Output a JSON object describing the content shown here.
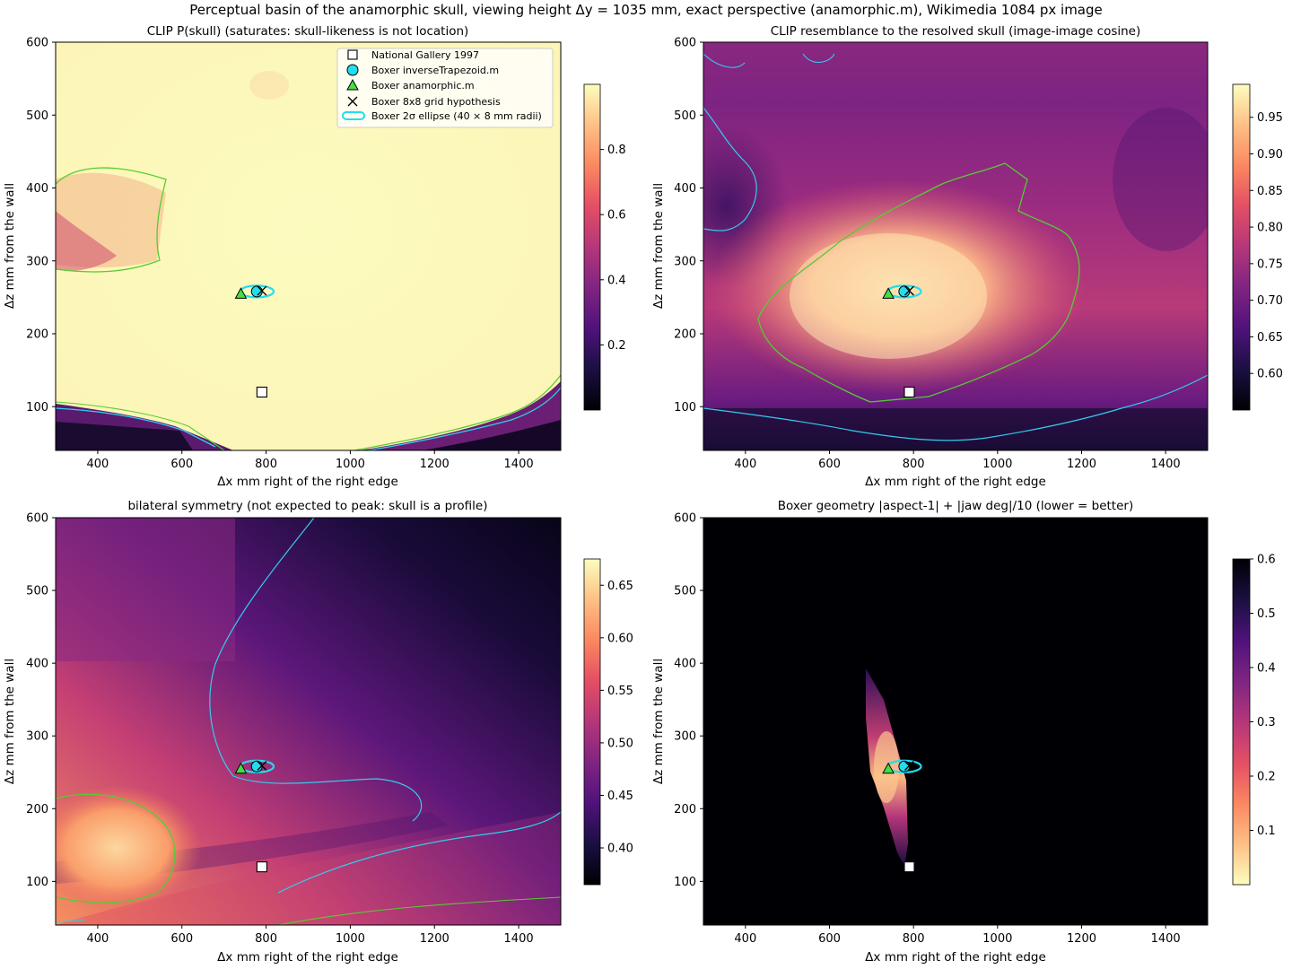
{
  "figure": {
    "suptitle": "Perceptual basin of the anamorphic skull, viewing height Δy = 1035 mm, exact perspective (anamorphic.m), Wikimedia 1084 px image"
  },
  "legend": {
    "national_gallery": "National Gallery 1997",
    "inverse_trapezoid": "Boxer inverseTrapezoid.m",
    "anamorphic": "Boxer anamorphic.m",
    "grid8x8": "Boxer 8x8 grid hypothesis",
    "ellipse": "Boxer 2σ ellipse (40 × 8 mm radii)"
  },
  "chart_data": [
    {
      "type": "heatmap",
      "title": "CLIP  P(skull)  (saturates: skull-likeness is not location)",
      "xlabel": "Δx  mm right of the right edge",
      "ylabel": "Δz  mm from the wall",
      "xlim": [
        300,
        1500
      ],
      "ylim": [
        40,
        600
      ],
      "xticks": [
        400,
        600,
        800,
        1000,
        1200,
        1400
      ],
      "yticks": [
        100,
        200,
        300,
        400,
        500,
        600
      ],
      "colormap": "magma",
      "colorbar": {
        "range": [
          0.0,
          1.0
        ],
        "ticks": [
          0.2,
          0.4,
          0.6,
          0.8
        ],
        "labels": [
          "0.2",
          "0.4",
          "0.6",
          "0.8"
        ]
      },
      "contours": [
        "#55cc33",
        "#33ccee"
      ],
      "markers": {
        "national_gallery": [
          790,
          120
        ],
        "inverse_trapezoid": [
          778,
          258
        ],
        "anamorphic": [
          740,
          255
        ],
        "grid8x8": [
          790,
          259
        ],
        "ellipse": {
          "center": [
            778,
            258
          ],
          "radii": [
            40,
            8
          ]
        }
      }
    },
    {
      "type": "heatmap",
      "title": "CLIP resemblance to the resolved skull (image-image cosine)",
      "xlabel": "Δx  mm right of the right edge",
      "ylabel": "Δz  mm from the wall",
      "xlim": [
        300,
        1500
      ],
      "ylim": [
        40,
        600
      ],
      "xticks": [
        400,
        600,
        800,
        1000,
        1200,
        1400
      ],
      "yticks": [
        100,
        200,
        300,
        400,
        500,
        600
      ],
      "colormap": "magma",
      "colorbar": {
        "range": [
          0.55,
          0.995
        ],
        "ticks": [
          0.6,
          0.65,
          0.7,
          0.75,
          0.8,
          0.85,
          0.9,
          0.95
        ],
        "labels": [
          "0.60",
          "0.65",
          "0.70",
          "0.75",
          "0.80",
          "0.85",
          "0.90",
          "0.95"
        ]
      },
      "contours": [
        "#55cc33",
        "#33ccee"
      ],
      "markers": {
        "national_gallery": [
          790,
          120
        ],
        "inverse_trapezoid": [
          778,
          258
        ],
        "anamorphic": [
          740,
          255
        ],
        "grid8x8": [
          790,
          259
        ],
        "ellipse": {
          "center": [
            778,
            258
          ],
          "radii": [
            40,
            8
          ]
        }
      }
    },
    {
      "type": "heatmap",
      "title": "bilateral symmetry (not expected to peak: skull is a profile)",
      "xlabel": "Δx  mm right of the right edge",
      "ylabel": "Δz  mm from the wall",
      "xlim": [
        300,
        1500
      ],
      "ylim": [
        40,
        600
      ],
      "xticks": [
        400,
        600,
        800,
        1000,
        1200,
        1400
      ],
      "yticks": [
        100,
        200,
        300,
        400,
        500,
        600
      ],
      "colormap": "magma",
      "colorbar": {
        "range": [
          0.365,
          0.675
        ],
        "ticks": [
          0.4,
          0.45,
          0.5,
          0.55,
          0.6,
          0.65
        ],
        "labels": [
          "0.40",
          "0.45",
          "0.50",
          "0.55",
          "0.60",
          "0.65"
        ]
      },
      "contours": [
        "#55cc33",
        "#33ccee"
      ],
      "markers": {
        "national_gallery": [
          790,
          120
        ],
        "inverse_trapezoid": [
          778,
          258
        ],
        "anamorphic": [
          740,
          255
        ],
        "grid8x8": [
          790,
          259
        ],
        "ellipse": {
          "center": [
            778,
            258
          ],
          "radii": [
            40,
            8
          ]
        }
      }
    },
    {
      "type": "heatmap",
      "title": "Boxer geometry  |aspect-1| + |jaw deg|/10  (lower = better)",
      "xlabel": "Δx  mm right of the right edge",
      "ylabel": "Δz  mm from the wall",
      "xlim": [
        300,
        1500
      ],
      "ylim": [
        40,
        600
      ],
      "xticks": [
        400,
        600,
        800,
        1000,
        1200,
        1400
      ],
      "yticks": [
        100,
        200,
        300,
        400,
        500,
        600
      ],
      "colormap": "magma_r",
      "colorbar": {
        "range": [
          0.0,
          0.6
        ],
        "ticks": [
          0.1,
          0.2,
          0.3,
          0.4,
          0.5,
          0.6
        ],
        "labels": [
          "0.1",
          "0.2",
          "0.3",
          "0.4",
          "0.5",
          "0.6"
        ]
      },
      "contours": [],
      "markers": {
        "national_gallery": [
          790,
          120
        ],
        "inverse_trapezoid": [
          778,
          258
        ],
        "anamorphic": [
          740,
          255
        ],
        "grid8x8": [
          790,
          259
        ],
        "ellipse": {
          "center": [
            778,
            258
          ],
          "radii": [
            40,
            8
          ]
        }
      }
    }
  ],
  "colors": {
    "contour_green": "#55cc33",
    "contour_cyan": "#33ccee",
    "marker_cyan": "#22ddee",
    "marker_green": "#44dd44"
  }
}
